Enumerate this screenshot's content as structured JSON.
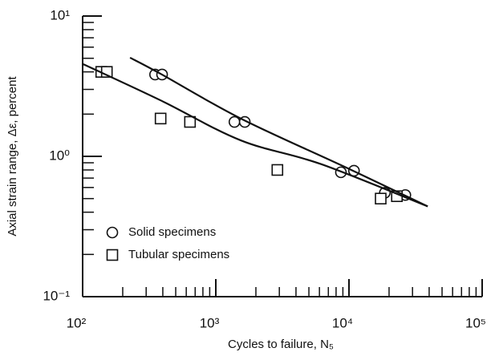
{
  "chart_data": {
    "type": "scatter",
    "xlabel": "Cycles to failure, N₅",
    "ylabel": "Axial strain range, Δε, percent",
    "xscale": "log",
    "yscale": "log",
    "xlim": [
      100,
      100000
    ],
    "ylim": [
      0.1,
      10
    ],
    "xticks": [
      {
        "value": 100,
        "label": "10²"
      },
      {
        "value": 1000,
        "label": "10³"
      },
      {
        "value": 10000,
        "label": "10⁴"
      },
      {
        "value": 100000,
        "label": "10⁵"
      }
    ],
    "yticks": [
      {
        "value": 0.1,
        "label": "10⁻¹"
      },
      {
        "value": 1,
        "label": "10⁰"
      },
      {
        "value": 10,
        "label": "10¹"
      }
    ],
    "legend": "lower left",
    "series": [
      {
        "name": "Solid specimens",
        "marker": "circle",
        "color": "#111111",
        "x": [
          350,
          395,
          1380,
          1650,
          8700,
          10900,
          18600,
          26500
        ],
        "values": [
          3.83,
          3.83,
          1.76,
          1.76,
          0.77,
          0.79,
          0.55,
          0.53
        ]
      },
      {
        "name": "Tubular specimens",
        "marker": "square",
        "color": "#111111",
        "x": [
          138,
          152,
          385,
          640,
          2900,
          17300,
          22900
        ],
        "values": [
          4.0,
          4.0,
          1.86,
          1.76,
          0.8,
          0.5,
          0.52
        ]
      },
      {
        "marker": "line",
        "color": "#111111",
        "x": [
          227,
          384,
          1540,
          9330,
          39000
        ],
        "values": [
          5.05,
          3.88,
          1.86,
          0.84,
          0.44
        ]
      },
      {
        "marker": "line",
        "color": "#111111",
        "x": [
          101,
          384,
          1540,
          6180,
          39000
        ],
        "values": [
          4.54,
          2.51,
          1.3,
          0.88,
          0.44
        ]
      }
    ]
  }
}
